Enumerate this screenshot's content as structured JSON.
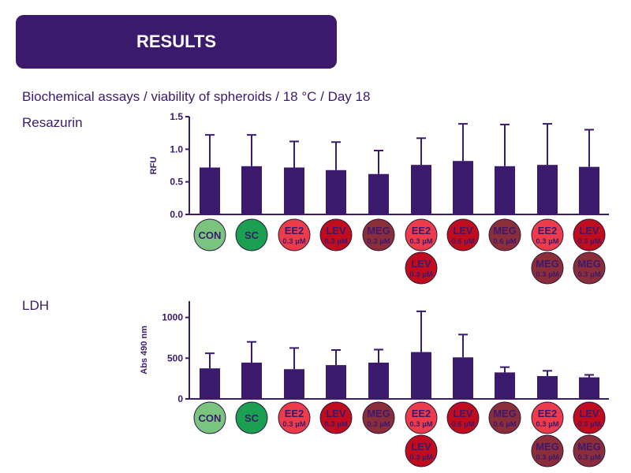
{
  "header": {
    "title": "RESULTS",
    "subtitle": "Biochemical assays / viability of spheroids / 18 °C / Day 18"
  },
  "colors": {
    "bar": "#3b1a6e",
    "CON": "#7bc47f",
    "SC": "#1aa050",
    "EE2": "#ee3b4a",
    "LEV": "#c00c1c",
    "MEG": "#8b2e3a",
    "text_on_circle": "#3b1a6e"
  },
  "groups": [
    {
      "labels": [
        {
          "name": "CON",
          "conc": "",
          "color": "CON"
        }
      ]
    },
    {
      "labels": [
        {
          "name": "SC",
          "conc": "",
          "color": "SC"
        }
      ]
    },
    {
      "labels": [
        {
          "name": "EE2",
          "conc": "0.3 µM",
          "color": "EE2"
        }
      ]
    },
    {
      "labels": [
        {
          "name": "LEV",
          "conc": "0.3 µM",
          "color": "LEV"
        }
      ]
    },
    {
      "labels": [
        {
          "name": "MEG",
          "conc": "0.3 µM",
          "color": "MEG"
        }
      ]
    },
    {
      "labels": [
        {
          "name": "EE2",
          "conc": "0.3 µM",
          "color": "EE2"
        },
        {
          "name": "LEV",
          "conc": "0.3 µM",
          "color": "LEV"
        }
      ]
    },
    {
      "labels": [
        {
          "name": "LEV",
          "conc": "0.6 µM",
          "color": "LEV"
        }
      ]
    },
    {
      "labels": [
        {
          "name": "MEG",
          "conc": "0.6 µM",
          "color": "MEG"
        }
      ]
    },
    {
      "labels": [
        {
          "name": "EE2",
          "conc": "0.3 µM",
          "color": "EE2"
        },
        {
          "name": "MEG",
          "conc": "0.3 µM",
          "color": "MEG"
        }
      ]
    },
    {
      "labels": [
        {
          "name": "LEV",
          "conc": "0.3 µM",
          "color": "LEV"
        },
        {
          "name": "MEG",
          "conc": "0.3 µM",
          "color": "MEG"
        }
      ]
    }
  ],
  "chart_data": [
    {
      "type": "bar",
      "title": "Resazurin",
      "ylabel": "RFU",
      "ylim": [
        0,
        1.5
      ],
      "yticks": [
        "0.0",
        "0.5",
        "1.0",
        "1.5"
      ],
      "ytick_values": [
        0,
        0.5,
        1.0,
        1.5
      ],
      "values": [
        0.72,
        0.74,
        0.72,
        0.68,
        0.62,
        0.76,
        0.82,
        0.74,
        0.76,
        0.73
      ],
      "errors": [
        0.5,
        0.48,
        0.4,
        0.43,
        0.36,
        0.41,
        0.57,
        0.64,
        0.63,
        0.57
      ]
    },
    {
      "type": "bar",
      "title": "LDH",
      "ylabel": "Abs 490 nm",
      "ylim": [
        0,
        1200
      ],
      "yticks": [
        "0",
        "500",
        "1000"
      ],
      "ytick_values": [
        0,
        500,
        1000
      ],
      "values": [
        375,
        445,
        365,
        415,
        445,
        575,
        510,
        325,
        280,
        265
      ],
      "errors": [
        185,
        255,
        260,
        185,
        160,
        500,
        280,
        65,
        65,
        30
      ]
    }
  ]
}
